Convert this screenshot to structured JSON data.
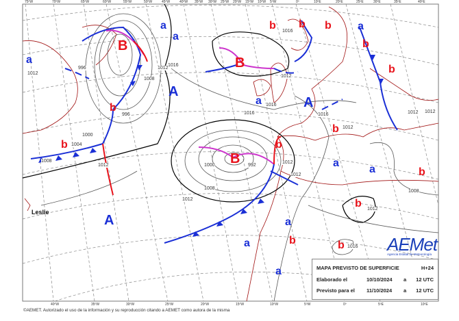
{
  "map": {
    "title": "MAPA PREVISTO DE SUPERFICIE",
    "lead": "H+24",
    "made_label": "Elaborado el",
    "made_date": "10/10/2024",
    "made_at": "a",
    "made_time": "12 UTC",
    "valid_label": "Previsto para el",
    "valid_date": "11/10/2024",
    "valid_at": "a",
    "valid_time": "12 UTC",
    "copyright": "©AEMET. Autorizado el uso de la información y su reproducción citando a AEMET como autora de la misma",
    "logo": "AEMet",
    "logo_sub": "Agencia Estatal de Meteorología",
    "storm_name": "Leslie",
    "bottom_ticks": [
      "40ºW",
      "35ºW",
      "30ºW",
      "25ºW",
      "20ºW",
      "15ºW",
      "10ºW",
      "5ºW",
      "0º",
      "5ºE",
      "10ºE"
    ],
    "top_ticks": [
      "75ºW",
      "70ºW",
      "65ºW",
      "60ºW",
      "55ºW",
      "50ºW",
      "45ºW",
      "40ºW",
      "35ºW",
      "30ºW",
      "25ºW",
      "20ºW",
      "15ºW",
      "10ºW",
      "5ºW",
      "0º",
      "10ºE",
      "20ºE",
      "25ºE",
      "30ºE",
      "35ºE",
      "40ºE"
    ],
    "centers": [
      {
        "letter": "a",
        "kind": "high"
      },
      {
        "letter": "B",
        "kind": "low"
      },
      {
        "letter": "a",
        "kind": "high"
      },
      {
        "letter": "a",
        "kind": "high"
      },
      {
        "letter": "b",
        "kind": "low"
      },
      {
        "letter": "b",
        "kind": "low"
      },
      {
        "letter": "b",
        "kind": "low"
      },
      {
        "letter": "a",
        "kind": "high"
      },
      {
        "letter": "b",
        "kind": "low"
      },
      {
        "letter": "b",
        "kind": "low"
      },
      {
        "letter": "A",
        "kind": "high"
      },
      {
        "letter": "A",
        "kind": "high"
      },
      {
        "letter": "a",
        "kind": "high"
      },
      {
        "letter": "B",
        "kind": "low"
      },
      {
        "letter": "b",
        "kind": "low"
      },
      {
        "letter": "b",
        "kind": "low"
      },
      {
        "letter": "B",
        "kind": "low"
      },
      {
        "letter": "b",
        "kind": "low"
      },
      {
        "letter": "b",
        "kind": "low"
      },
      {
        "letter": "a",
        "kind": "high"
      },
      {
        "letter": "a",
        "kind": "high"
      },
      {
        "letter": "b",
        "kind": "low"
      },
      {
        "letter": "b",
        "kind": "low"
      },
      {
        "letter": "A",
        "kind": "high"
      },
      {
        "letter": "a",
        "kind": "high"
      },
      {
        "letter": "b",
        "kind": "low"
      },
      {
        "letter": "a",
        "kind": "high"
      },
      {
        "letter": "b",
        "kind": "low"
      },
      {
        "letter": "a",
        "kind": "high"
      }
    ],
    "isobar_labels": [
      "1012",
      "996",
      "1008",
      "996",
      "1016",
      "1016",
      "1012",
      "1000",
      "1004",
      "1008",
      "1012",
      "1016",
      "1012",
      "1000",
      "992",
      "1008",
      "1012",
      "1012",
      "1016",
      "1012",
      "1012",
      "1012",
      "1016",
      "1008",
      "1016",
      "1012",
      "1012"
    ],
    "colors": {
      "high": "#1a2fd6",
      "low": "#e8121a",
      "cold_front": "#1a2fd6",
      "warm_front": "#e8121a",
      "occluded_front": "#cc33cc",
      "coast": "#a01010"
    }
  }
}
